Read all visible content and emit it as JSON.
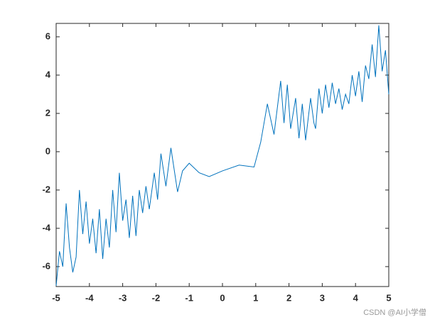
{
  "chart_data": {
    "type": "line",
    "x": [
      -5.0,
      -4.9,
      -4.8,
      -4.7,
      -4.6,
      -4.5,
      -4.4,
      -4.3,
      -4.2,
      -4.1,
      -4.0,
      -3.9,
      -3.8,
      -3.7,
      -3.6,
      -3.5,
      -3.4,
      -3.3,
      -3.2,
      -3.1,
      -3.0,
      -2.9,
      -2.8,
      -2.7,
      -2.6,
      -2.5,
      -2.4,
      -2.3,
      -2.2,
      -2.05,
      -1.95,
      -1.85,
      -1.7,
      -1.55,
      -1.35,
      -1.2,
      -1.0,
      -0.7,
      -0.4,
      0,
      0.5,
      0.95,
      1.15,
      1.35,
      1.55,
      1.75,
      1.85,
      1.95,
      2.05,
      2.2,
      2.3,
      2.4,
      2.5,
      2.65,
      2.75,
      2.8,
      2.9,
      3.0,
      3.1,
      3.2,
      3.3,
      3.4,
      3.5,
      3.6,
      3.7,
      3.8,
      3.9,
      4.0,
      4.1,
      4.2,
      4.3,
      4.4,
      4.5,
      4.6,
      4.7,
      4.8,
      4.9,
      5.0
    ],
    "series": [
      {
        "color": "#0072bd",
        "values": [
          -7.0,
          -5.2,
          -6.0,
          -2.7,
          -5.0,
          -6.3,
          -5.5,
          -2.0,
          -4.3,
          -2.6,
          -4.8,
          -3.5,
          -5.3,
          -3.0,
          -5.6,
          -3.5,
          -5.0,
          -2.0,
          -4.2,
          -1.1,
          -3.6,
          -2.5,
          -4.5,
          -2.3,
          -4.4,
          -2.0,
          -3.2,
          -1.8,
          -3.0,
          -1.1,
          -2.5,
          -0.1,
          -1.8,
          0.2,
          -2.1,
          -1.0,
          -0.6,
          -1.1,
          -1.3,
          -1.0,
          -0.7,
          -0.8,
          0.5,
          2.5,
          0.9,
          3.7,
          1.5,
          3.5,
          1.2,
          2.8,
          0.7,
          2.5,
          0.6,
          2.8,
          1.5,
          1.2,
          3.3,
          2.0,
          3.5,
          2.3,
          3.6,
          2.5,
          3.3,
          2.2,
          3.0,
          2.5,
          4.0,
          2.9,
          4.2,
          2.6,
          4.5,
          3.8,
          5.6,
          3.9,
          6.6,
          4.2,
          5.3,
          3.0
        ]
      }
    ],
    "xlim": [
      -5,
      5
    ],
    "ylim": [
      -7.04,
      6.7
    ],
    "xticks": [
      -5,
      -4,
      -3,
      -2,
      -1,
      0,
      1,
      2,
      3,
      4,
      5
    ],
    "yticks": [
      -6,
      -4,
      -2,
      0,
      2,
      4,
      6
    ]
  },
  "watermark": "CSDN @AI小学僧"
}
